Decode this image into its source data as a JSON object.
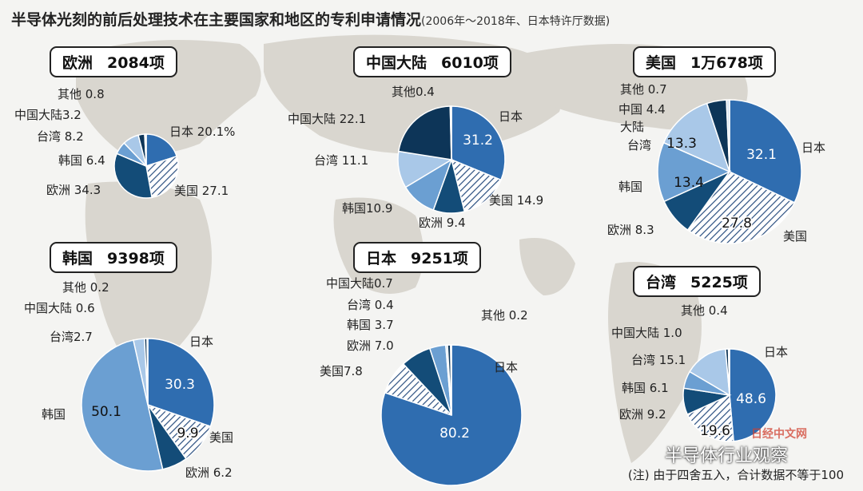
{
  "header": {
    "title": "半导体光刻的前后处理技术在主要国家和地区的专利申请情况",
    "subtitle": "(2006年～2018年、日本特许厅数据)"
  },
  "footnote": "(注) 由于四舍五入，合计数据不等于100",
  "watermark": "半导体行业观察",
  "watermark_source": "日经中文网",
  "colors": {
    "japan": "#2f6db0",
    "usa_hatch": "#ffffff",
    "hatch_line": "#2a4f80",
    "europe": "#134c78",
    "korea": "#6b9fd2",
    "taiwan": "#a9c8e8",
    "china": "#0d3558",
    "other": "#d7e4f1"
  },
  "panels": [
    {
      "region": "欧洲",
      "total": "2084项",
      "slices": [
        {
          "label": "日本",
          "value": 20.1,
          "text": "日本 20.1%"
        },
        {
          "label": "美国",
          "value": 27.1,
          "text": "美国 27.1"
        },
        {
          "label": "欧洲",
          "value": 34.3,
          "text": "欧洲 34.3"
        },
        {
          "label": "韩国",
          "value": 6.4,
          "text": "韩国 6.4"
        },
        {
          "label": "台湾",
          "value": 8.2,
          "text": "台湾 8.2"
        },
        {
          "label": "中国大陆",
          "value": 3.2,
          "text": "中国大陆3.2"
        },
        {
          "label": "其他",
          "value": 0.8,
          "text": "其他 0.8"
        }
      ]
    },
    {
      "region": "中国大陆",
      "total": "6010项",
      "slices": [
        {
          "label": "日本",
          "value": 31.2,
          "text": "31.2",
          "text2": "日本"
        },
        {
          "label": "美国",
          "value": 14.9,
          "text": "美国 14.9"
        },
        {
          "label": "欧洲",
          "value": 9.4,
          "text": "欧洲 9.4"
        },
        {
          "label": "韩国",
          "value": 10.9,
          "text": "韩国10.9"
        },
        {
          "label": "台湾",
          "value": 11.1,
          "text": "台湾 11.1"
        },
        {
          "label": "中国大陆",
          "value": 22.1,
          "text": "中国大陆 22.1"
        },
        {
          "label": "其他",
          "value": 0.4,
          "text": "其他0.4"
        }
      ]
    },
    {
      "region": "美国",
      "total": "1万678项",
      "slices": [
        {
          "label": "日本",
          "value": 32.1,
          "text": "32.1",
          "text2": "日本"
        },
        {
          "label": "美国",
          "value": 27.8,
          "text": "27.8",
          "text2": "美国"
        },
        {
          "label": "欧洲",
          "value": 8.3,
          "text": "欧洲 8.3"
        },
        {
          "label": "韩国",
          "value": 13.4,
          "text": "13.4",
          "text2": "韩国"
        },
        {
          "label": "台湾",
          "value": 13.3,
          "text": "13.3",
          "text2": "台湾"
        },
        {
          "label": "中国大陆",
          "value": 4.4,
          "text": "中国 4.4",
          "text2": "大陆"
        },
        {
          "label": "其他",
          "value": 0.7,
          "text": "其他 0.7"
        }
      ]
    },
    {
      "region": "韩国",
      "total": "9398项",
      "slices": [
        {
          "label": "日本",
          "value": 30.3,
          "text": "30.3",
          "text2": "日本"
        },
        {
          "label": "美国",
          "value": 9.9,
          "text": "9.9",
          "text2": "美国"
        },
        {
          "label": "欧洲",
          "value": 6.2,
          "text": "欧洲 6.2"
        },
        {
          "label": "韩国",
          "value": 50.1,
          "text": "50.1",
          "text2": "韩国"
        },
        {
          "label": "台湾",
          "value": 2.7,
          "text": "台湾2.7"
        },
        {
          "label": "中国大陆",
          "value": 0.6,
          "text": "中国大陆 0.6"
        },
        {
          "label": "其他",
          "value": 0.2,
          "text": "其他 0.2"
        }
      ]
    },
    {
      "region": "日本",
      "total": "9251项",
      "slices": [
        {
          "label": "日本",
          "value": 80.2,
          "text": "80.2",
          "text2": "日本"
        },
        {
          "label": "美国",
          "value": 7.8,
          "text": "美国7.8"
        },
        {
          "label": "欧洲",
          "value": 7.0,
          "text": "欧洲 7.0"
        },
        {
          "label": "韩国",
          "value": 3.7,
          "text": "韩国 3.7"
        },
        {
          "label": "台湾",
          "value": 0.4,
          "text": "台湾 0.4"
        },
        {
          "label": "中国大陆",
          "value": 0.7,
          "text": "中国大陆0.7"
        },
        {
          "label": "其他",
          "value": 0.2,
          "text": "其他 0.2"
        }
      ]
    },
    {
      "region": "台湾",
      "total": "5225项",
      "slices": [
        {
          "label": "日本",
          "value": 48.6,
          "text": "48.6",
          "text2": "日本"
        },
        {
          "label": "美国",
          "value": 19.6,
          "text": "19.6",
          "text2": "美国"
        },
        {
          "label": "欧洲",
          "value": 9.2,
          "text": "欧洲 9.2"
        },
        {
          "label": "韩国",
          "value": 6.1,
          "text": "韩国 6.1"
        },
        {
          "label": "台湾",
          "value": 15.1,
          "text": "台湾 15.1"
        },
        {
          "label": "中国大陆",
          "value": 1.0,
          "text": "中国大陆 1.0"
        },
        {
          "label": "其他",
          "value": 0.4,
          "text": "其他 0.4"
        }
      ]
    }
  ],
  "chart_data": [
    {
      "type": "pie",
      "title": "欧洲 2084项",
      "categories": [
        "日本",
        "美国",
        "欧洲",
        "韩国",
        "台湾",
        "中国大陆",
        "其他"
      ],
      "values": [
        20.1,
        27.1,
        34.3,
        6.4,
        8.2,
        3.2,
        0.8
      ]
    },
    {
      "type": "pie",
      "title": "中国大陆 6010项",
      "categories": [
        "日本",
        "美国",
        "欧洲",
        "韩国",
        "台湾",
        "中国大陆",
        "其他"
      ],
      "values": [
        31.2,
        14.9,
        9.4,
        10.9,
        11.1,
        22.1,
        0.4
      ]
    },
    {
      "type": "pie",
      "title": "美国 1万678项",
      "categories": [
        "日本",
        "美国",
        "欧洲",
        "韩国",
        "台湾",
        "中国大陆",
        "其他"
      ],
      "values": [
        32.1,
        27.8,
        8.3,
        13.4,
        13.3,
        4.4,
        0.7
      ]
    },
    {
      "type": "pie",
      "title": "韩国 9398项",
      "categories": [
        "日本",
        "美国",
        "欧洲",
        "韩国",
        "台湾",
        "中国大陆",
        "其他"
      ],
      "values": [
        30.3,
        9.9,
        6.2,
        50.1,
        2.7,
        0.6,
        0.2
      ]
    },
    {
      "type": "pie",
      "title": "日本 9251项",
      "categories": [
        "日本",
        "美国",
        "欧洲",
        "韩国",
        "台湾",
        "中国大陆",
        "其他"
      ],
      "values": [
        80.2,
        7.8,
        7.0,
        3.7,
        0.4,
        0.7,
        0.2
      ]
    },
    {
      "type": "pie",
      "title": "台湾 5225项",
      "categories": [
        "日本",
        "美国",
        "欧洲",
        "韩国",
        "台湾",
        "中国大陆",
        "其他"
      ],
      "values": [
        48.6,
        19.6,
        9.2,
        6.1,
        15.1,
        1.0,
        0.4
      ]
    }
  ]
}
